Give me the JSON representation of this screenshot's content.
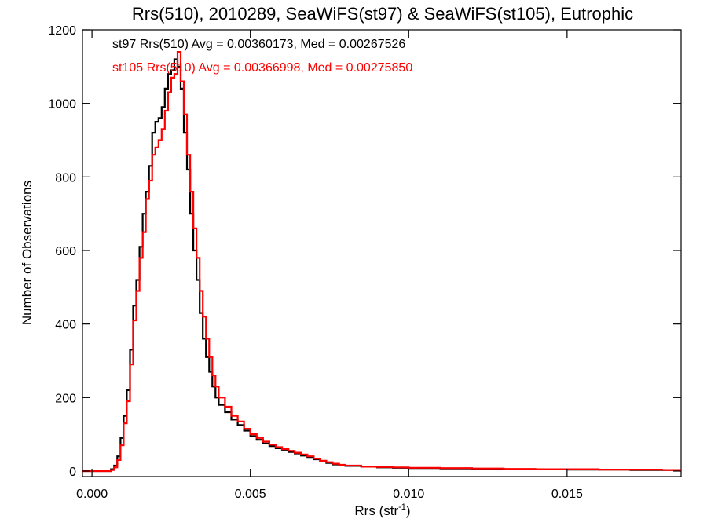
{
  "chart_data": {
    "type": "line",
    "step": true,
    "title": "Rrs(510), 2010289, SeaWiFS(st97) & SeaWiFS(st105), Eutrophic",
    "xlabel": "Rrs (str",
    "xlabel_sup": "-1",
    "xlabel_close": ")",
    "ylabel": "Number of Observations",
    "xlim": [
      -0.0003,
      0.0186
    ],
    "ylim": [
      -15,
      1200
    ],
    "xticks": [
      0.0,
      0.005,
      0.01,
      0.015
    ],
    "xtick_labels": [
      "0.000",
      "0.005",
      "0.010",
      "0.015"
    ],
    "yticks": [
      0,
      200,
      400,
      600,
      800,
      1000,
      1200
    ],
    "ytick_labels": [
      "0",
      "200",
      "400",
      "600",
      "800",
      "1000",
      "1200"
    ],
    "grid": false,
    "annotations": [
      {
        "text": "st97 Rrs(510) Avg = 0.00360173, Med = 0.00267526",
        "color": "#000000"
      },
      {
        "text": "st105 Rrs(510) Avg = 0.00366998, Med = 0.00275850",
        "color": "#ff0000"
      }
    ],
    "series": [
      {
        "color": "#000000",
        "points": [
          [
            -0.0003,
            0
          ],
          [
            0.0004,
            0
          ],
          [
            0.0006,
            5
          ],
          [
            0.0007,
            15
          ],
          [
            0.0008,
            40
          ],
          [
            0.0009,
            90
          ],
          [
            0.001,
            150
          ],
          [
            0.0011,
            220
          ],
          [
            0.0012,
            330
          ],
          [
            0.0013,
            450
          ],
          [
            0.0014,
            520
          ],
          [
            0.0015,
            610
          ],
          [
            0.0016,
            700
          ],
          [
            0.0017,
            760
          ],
          [
            0.0018,
            830
          ],
          [
            0.0019,
            920
          ],
          [
            0.002,
            950
          ],
          [
            0.0021,
            960
          ],
          [
            0.0022,
            990
          ],
          [
            0.0023,
            1040
          ],
          [
            0.0024,
            1080
          ],
          [
            0.0025,
            1090
          ],
          [
            0.0026,
            1120
          ],
          [
            0.0027,
            1100
          ],
          [
            0.0028,
            1040
          ],
          [
            0.0029,
            920
          ],
          [
            0.003,
            820
          ],
          [
            0.0031,
            700
          ],
          [
            0.0032,
            600
          ],
          [
            0.0033,
            520
          ],
          [
            0.0034,
            430
          ],
          [
            0.0035,
            360
          ],
          [
            0.0036,
            310
          ],
          [
            0.0037,
            270
          ],
          [
            0.0038,
            230
          ],
          [
            0.0039,
            200
          ],
          [
            0.004,
            180
          ],
          [
            0.0042,
            160
          ],
          [
            0.0044,
            140
          ],
          [
            0.0046,
            125
          ],
          [
            0.0048,
            110
          ],
          [
            0.005,
            95
          ],
          [
            0.0052,
            85
          ],
          [
            0.0054,
            75
          ],
          [
            0.0056,
            68
          ],
          [
            0.0058,
            62
          ],
          [
            0.006,
            58
          ],
          [
            0.0062,
            52
          ],
          [
            0.0064,
            48
          ],
          [
            0.0066,
            42
          ],
          [
            0.0068,
            38
          ],
          [
            0.007,
            32
          ],
          [
            0.0072,
            26
          ],
          [
            0.0074,
            22
          ],
          [
            0.0076,
            18
          ],
          [
            0.0078,
            16
          ],
          [
            0.008,
            14
          ],
          [
            0.0085,
            12
          ],
          [
            0.009,
            10
          ],
          [
            0.0095,
            9
          ],
          [
            0.01,
            8
          ],
          [
            0.011,
            7
          ],
          [
            0.012,
            6
          ],
          [
            0.013,
            5
          ],
          [
            0.014,
            5
          ],
          [
            0.015,
            4
          ],
          [
            0.016,
            4
          ],
          [
            0.017,
            3
          ],
          [
            0.018,
            3
          ],
          [
            0.0186,
            3
          ]
        ]
      },
      {
        "color": "#ff0000",
        "points": [
          [
            -0.0003,
            0
          ],
          [
            0.0004,
            0
          ],
          [
            0.0006,
            3
          ],
          [
            0.0007,
            10
          ],
          [
            0.0008,
            30
          ],
          [
            0.0009,
            70
          ],
          [
            0.001,
            130
          ],
          [
            0.0011,
            190
          ],
          [
            0.0012,
            290
          ],
          [
            0.0013,
            410
          ],
          [
            0.0014,
            490
          ],
          [
            0.0015,
            580
          ],
          [
            0.0016,
            650
          ],
          [
            0.0017,
            740
          ],
          [
            0.0018,
            790
          ],
          [
            0.0019,
            860
          ],
          [
            0.002,
            880
          ],
          [
            0.0021,
            900
          ],
          [
            0.0022,
            930
          ],
          [
            0.0023,
            980
          ],
          [
            0.0024,
            1030
          ],
          [
            0.0025,
            1070
          ],
          [
            0.0026,
            1080
          ],
          [
            0.0027,
            1140
          ],
          [
            0.0028,
            1060
          ],
          [
            0.0029,
            970
          ],
          [
            0.003,
            860
          ],
          [
            0.0031,
            760
          ],
          [
            0.0032,
            660
          ],
          [
            0.0033,
            580
          ],
          [
            0.0034,
            490
          ],
          [
            0.0035,
            420
          ],
          [
            0.0036,
            360
          ],
          [
            0.0037,
            310
          ],
          [
            0.0038,
            260
          ],
          [
            0.0039,
            230
          ],
          [
            0.004,
            200
          ],
          [
            0.0042,
            175
          ],
          [
            0.0044,
            150
          ],
          [
            0.0046,
            135
          ],
          [
            0.0048,
            115
          ],
          [
            0.005,
            100
          ],
          [
            0.0052,
            90
          ],
          [
            0.0054,
            80
          ],
          [
            0.0056,
            72
          ],
          [
            0.0058,
            65
          ],
          [
            0.006,
            60
          ],
          [
            0.0062,
            55
          ],
          [
            0.0064,
            50
          ],
          [
            0.0066,
            45
          ],
          [
            0.0068,
            40
          ],
          [
            0.007,
            34
          ],
          [
            0.0072,
            28
          ],
          [
            0.0074,
            24
          ],
          [
            0.0076,
            20
          ],
          [
            0.0078,
            17
          ],
          [
            0.008,
            15
          ],
          [
            0.0085,
            12
          ],
          [
            0.009,
            11
          ],
          [
            0.0095,
            10
          ],
          [
            0.01,
            9
          ],
          [
            0.011,
            8
          ],
          [
            0.012,
            7
          ],
          [
            0.013,
            6
          ],
          [
            0.014,
            5
          ],
          [
            0.015,
            5
          ],
          [
            0.016,
            4
          ],
          [
            0.017,
            4
          ],
          [
            0.018,
            3
          ],
          [
            0.0186,
            3
          ]
        ]
      }
    ]
  }
}
